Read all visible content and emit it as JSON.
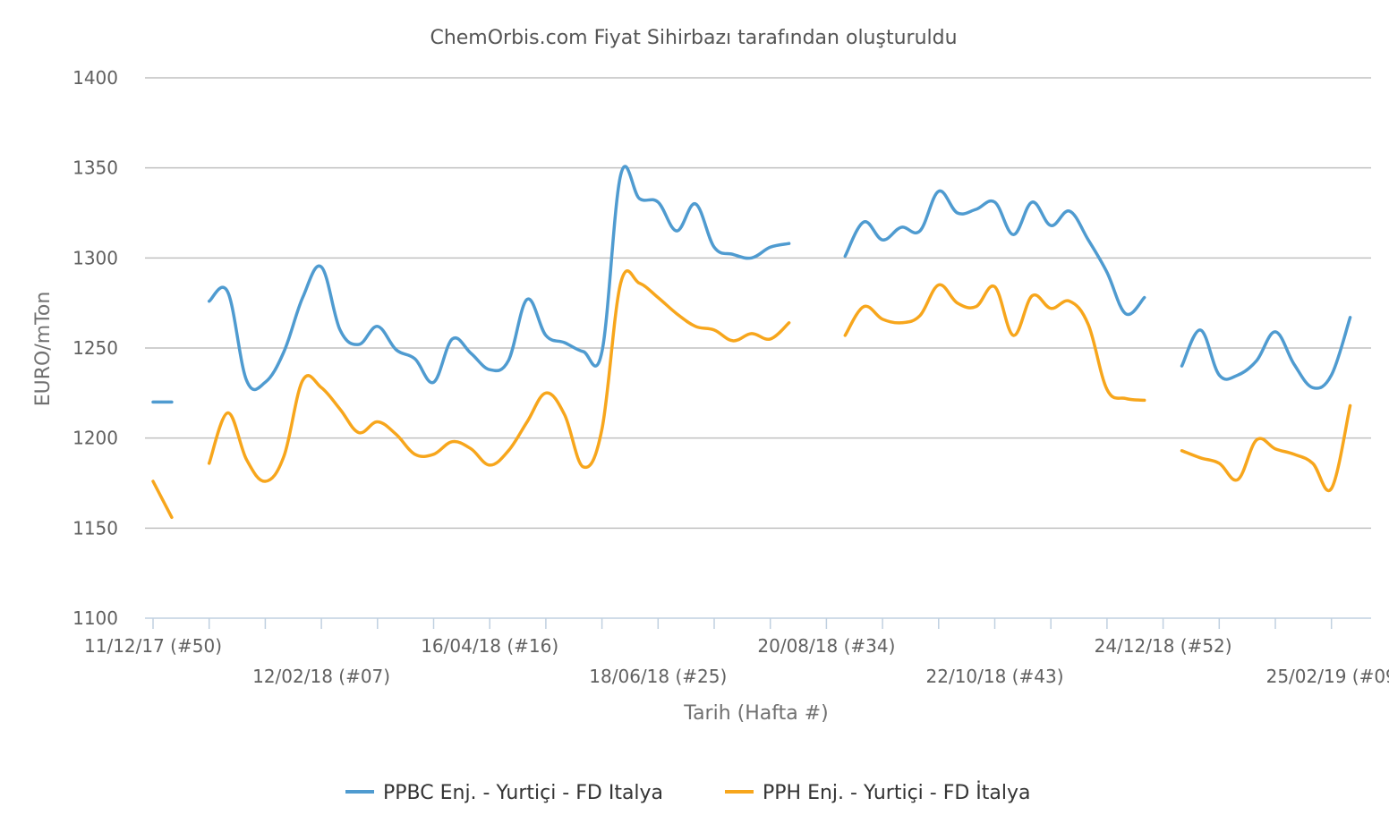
{
  "chart_data": {
    "type": "line",
    "title": "ChemOrbis.com Fiyat Sihirbazı tarafından oluşturuldu",
    "xlabel": "Tarih (Hafta #)",
    "ylabel": "EURO/mTon",
    "ylim": [
      1100,
      1400
    ],
    "yticks": [
      1100,
      1150,
      1200,
      1250,
      1300,
      1350,
      1400
    ],
    "grid": true,
    "legend_position": "bottom",
    "x_week_start": "11/12/17",
    "x_week_count": 64,
    "x_tick_labels": [
      {
        "week": 0,
        "label": "11/12/17 (#50)",
        "row": 1
      },
      {
        "week": 9,
        "label": "12/02/18 (#07)",
        "row": 2
      },
      {
        "week": 18,
        "label": "16/04/18 (#16)",
        "row": 1
      },
      {
        "week": 27,
        "label": "18/06/18 (#25)",
        "row": 2
      },
      {
        "week": 36,
        "label": "20/08/18 (#34)",
        "row": 1
      },
      {
        "week": 45,
        "label": "22/10/18 (#43)",
        "row": 2
      },
      {
        "week": 54,
        "label": "24/12/18 (#52)",
        "row": 1
      },
      {
        "week": 63,
        "label": "25/02/19 (#09",
        "row": 2
      }
    ],
    "series": [
      {
        "name": "PPBC Enj. - Yurtiçi - FD Italya",
        "color": "#4f9bd0",
        "segments": [
          [
            [
              0,
              1220
            ],
            [
              1,
              1220
            ]
          ],
          [
            [
              3,
              1276
            ],
            [
              4,
              1281
            ],
            [
              5,
              1232
            ],
            [
              6,
              1231
            ],
            [
              7,
              1248
            ],
            [
              8,
              1278
            ],
            [
              9,
              1295
            ],
            [
              10,
              1260
            ],
            [
              11,
              1252
            ],
            [
              12,
              1262
            ],
            [
              13,
              1249
            ],
            [
              14,
              1244
            ],
            [
              15,
              1231
            ],
            [
              16,
              1255
            ],
            [
              17,
              1247
            ],
            [
              18,
              1238
            ],
            [
              19,
              1243
            ],
            [
              20,
              1277
            ],
            [
              21,
              1257
            ],
            [
              22,
              1253
            ],
            [
              23,
              1248
            ],
            [
              24,
              1248
            ],
            [
              25,
              1346
            ],
            [
              26,
              1333
            ],
            [
              27,
              1331
            ],
            [
              28,
              1315
            ],
            [
              29,
              1330
            ],
            [
              30,
              1306
            ],
            [
              31,
              1302
            ],
            [
              32,
              1300
            ],
            [
              33,
              1306
            ],
            [
              34,
              1308
            ]
          ],
          [
            [
              37,
              1301
            ],
            [
              38,
              1320
            ],
            [
              39,
              1310
            ],
            [
              40,
              1317
            ],
            [
              41,
              1315
            ],
            [
              42,
              1337
            ],
            [
              43,
              1325
            ],
            [
              44,
              1327
            ],
            [
              45,
              1331
            ],
            [
              46,
              1313
            ],
            [
              47,
              1331
            ],
            [
              48,
              1318
            ],
            [
              49,
              1326
            ],
            [
              50,
              1310
            ],
            [
              51,
              1292
            ],
            [
              52,
              1269
            ],
            [
              53,
              1278
            ]
          ],
          [
            [
              55,
              1240
            ],
            [
              56,
              1260
            ],
            [
              57,
              1235
            ],
            [
              58,
              1235
            ],
            [
              59,
              1243
            ],
            [
              60,
              1259
            ],
            [
              61,
              1241
            ],
            [
              62,
              1228
            ],
            [
              63,
              1235
            ],
            [
              64,
              1267
            ]
          ]
        ]
      },
      {
        "name": "PPH Enj. - Yurtiçi - FD İtalya",
        "color": "#f7a61c",
        "segments": [
          [
            [
              0,
              1176
            ],
            [
              1,
              1156
            ]
          ],
          [
            [
              3,
              1186
            ],
            [
              4,
              1214
            ],
            [
              5,
              1188
            ],
            [
              6,
              1176
            ],
            [
              7,
              1190
            ],
            [
              8,
              1232
            ],
            [
              9,
              1228
            ],
            [
              10,
              1216
            ],
            [
              11,
              1203
            ],
            [
              12,
              1209
            ],
            [
              13,
              1202
            ],
            [
              14,
              1191
            ],
            [
              15,
              1191
            ],
            [
              16,
              1198
            ],
            [
              17,
              1194
            ],
            [
              18,
              1185
            ],
            [
              19,
              1193
            ],
            [
              20,
              1209
            ],
            [
              21,
              1225
            ],
            [
              22,
              1213
            ],
            [
              23,
              1184
            ],
            [
              24,
              1205
            ],
            [
              25,
              1286
            ],
            [
              26,
              1286
            ],
            [
              27,
              1278
            ],
            [
              28,
              1269
            ],
            [
              29,
              1262
            ],
            [
              30,
              1260
            ],
            [
              31,
              1254
            ],
            [
              32,
              1258
            ],
            [
              33,
              1255
            ],
            [
              34,
              1264
            ]
          ],
          [
            [
              37,
              1257
            ],
            [
              38,
              1273
            ],
            [
              39,
              1266
            ],
            [
              40,
              1264
            ],
            [
              41,
              1268
            ],
            [
              42,
              1285
            ],
            [
              43,
              1275
            ],
            [
              44,
              1273
            ],
            [
              45,
              1284
            ],
            [
              46,
              1257
            ],
            [
              47,
              1279
            ],
            [
              48,
              1272
            ],
            [
              49,
              1276
            ],
            [
              50,
              1263
            ],
            [
              51,
              1227
            ],
            [
              52,
              1222
            ],
            [
              53,
              1221
            ]
          ],
          [
            [
              55,
              1193
            ],
            [
              56,
              1189
            ],
            [
              57,
              1186
            ],
            [
              58,
              1177
            ],
            [
              59,
              1199
            ],
            [
              60,
              1194
            ],
            [
              61,
              1191
            ],
            [
              62,
              1186
            ],
            [
              63,
              1172
            ],
            [
              64,
              1218
            ]
          ]
        ]
      }
    ]
  }
}
